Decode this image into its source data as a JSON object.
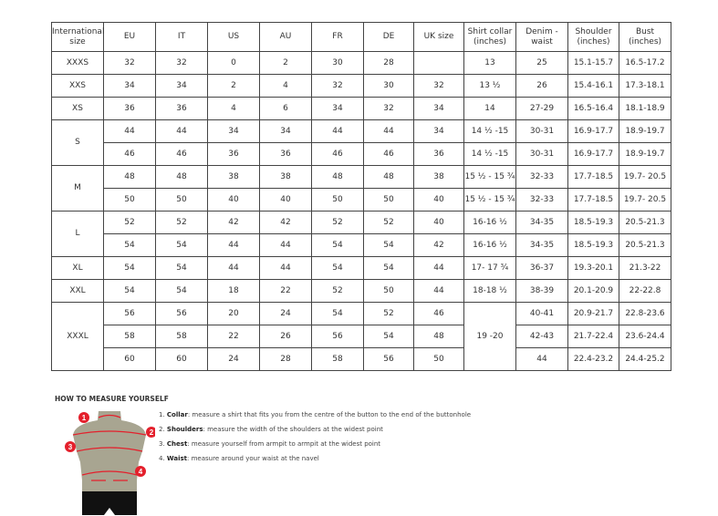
{
  "table": {
    "headers": [
      "International size",
      "EU",
      "IT",
      "US",
      "AU",
      "FR",
      "DE",
      "UK size",
      "Shirt collar (inches)",
      "Denim - waist",
      "Shoulder (inches)",
      "Bust (inches)"
    ],
    "groups": [
      {
        "size": "XXXS",
        "rows": [
          [
            "32",
            "32",
            "0",
            "2",
            "30",
            "28",
            "",
            "13",
            "25",
            "15.1-15.7",
            "16.5-17.2"
          ]
        ]
      },
      {
        "size": "XXS",
        "rows": [
          [
            "34",
            "34",
            "2",
            "4",
            "32",
            "30",
            "32",
            "13 ½",
            "26",
            "15.4-16.1",
            "17.3-18.1"
          ]
        ]
      },
      {
        "size": "XS",
        "rows": [
          [
            "36",
            "36",
            "4",
            "6",
            "34",
            "32",
            "34",
            "14",
            "27-29",
            "16.5-16.4",
            "18.1-18.9"
          ]
        ]
      },
      {
        "size": "S",
        "rows": [
          [
            "44",
            "44",
            "34",
            "34",
            "44",
            "44",
            "34",
            "14 ½ -15",
            "30-31",
            "16.9-17.7",
            "18.9-19.7"
          ],
          [
            "46",
            "46",
            "36",
            "36",
            "46",
            "46",
            "36",
            "14 ½ -15",
            "30-31",
            "16.9-17.7",
            "18.9-19.7"
          ]
        ]
      },
      {
        "size": "M",
        "rows": [
          [
            "48",
            "48",
            "38",
            "38",
            "48",
            "48",
            "38",
            "15 ½ - 15 ¾",
            "32-33",
            "17.7-18.5",
            "19.7- 20.5"
          ],
          [
            "50",
            "50",
            "40",
            "40",
            "50",
            "50",
            "40",
            "15 ½ - 15 ¾",
            "32-33",
            "17.7-18.5",
            "19.7- 20.5"
          ]
        ]
      },
      {
        "size": "L",
        "rows": [
          [
            "52",
            "52",
            "42",
            "42",
            "52",
            "52",
            "40",
            "16-16 ½",
            "34-35",
            "18.5-19.3",
            "20.5-21.3"
          ],
          [
            "54",
            "54",
            "44",
            "44",
            "54",
            "54",
            "42",
            "16-16 ½",
            "34-35",
            "18.5-19.3",
            "20.5-21.3"
          ]
        ]
      },
      {
        "size": "XL",
        "rows": [
          [
            "54",
            "54",
            "44",
            "44",
            "54",
            "54",
            "44",
            "17- 17 ¾",
            "36-37",
            "19.3-20.1",
            "21.3-22"
          ]
        ]
      },
      {
        "size": "XXL",
        "rows": [
          [
            "54",
            "54",
            "18",
            "22",
            "52",
            "50",
            "44",
            "18-18 ½",
            "38-39",
            "20.1-20.9",
            "22-22.8"
          ]
        ]
      },
      {
        "size": "XXXL",
        "collar_merged": "19 -20",
        "rows": [
          [
            "56",
            "56",
            "20",
            "24",
            "54",
            "52",
            "46",
            null,
            "40-41",
            "20.9-21.7",
            "22.8-23.6"
          ],
          [
            "58",
            "58",
            "22",
            "26",
            "56",
            "54",
            "48",
            null,
            "42-43",
            "21.7-22.4",
            "23.6-24.4"
          ],
          [
            "60",
            "60",
            "24",
            "28",
            "58",
            "56",
            "50",
            null,
            "44",
            "22.4-23.2",
            "24.4-25.2"
          ]
        ]
      }
    ]
  },
  "howto": {
    "title": "HOW TO MEASURE YOURSELF",
    "markers": [
      "1",
      "2",
      "3",
      "4"
    ],
    "steps": [
      {
        "num": "1.",
        "term": "Collar",
        "text": ": measure a shirt that fits you from the centre of the button to the end of the buttonhole"
      },
      {
        "num": "2.",
        "term": "Shoulders",
        "text": ": measure the width of the shoulders at the widest point"
      },
      {
        "num": "3.",
        "term": "Chest",
        "text": ": measure yourself from armpit to armpit at the widest point"
      },
      {
        "num": "4.",
        "term": "Waist",
        "text": ": measure around your waist at the navel"
      }
    ],
    "colors": {
      "accent": "#e4202c",
      "torso": "#a8a591",
      "shorts": "#111111"
    }
  }
}
